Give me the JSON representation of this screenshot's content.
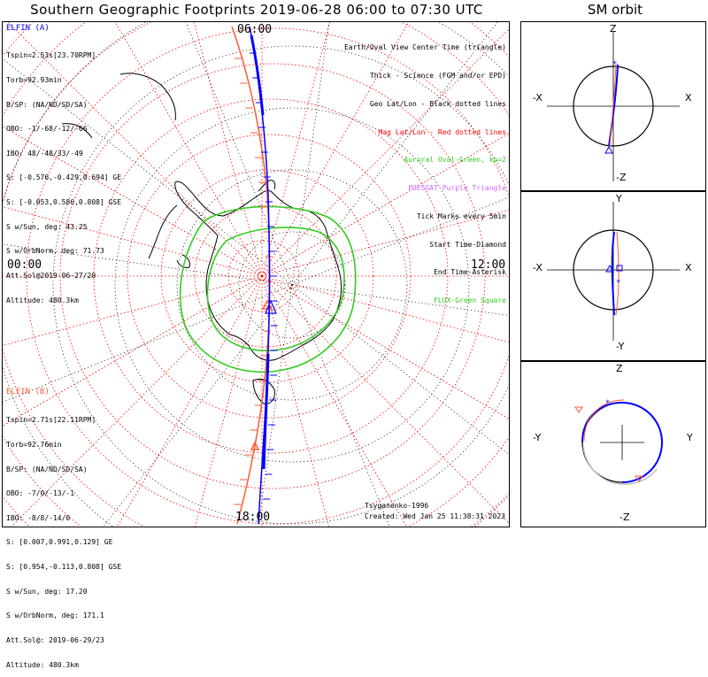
{
  "title": "Southern Geographic Footprints 2019-06-28 06:00 to 07:30 UTC",
  "orbit_title": "SM orbit",
  "colors": {
    "elfin_a": "#0000ff",
    "elfin_b": "#ff5a36",
    "aurora": "#33cc22",
    "geo_grid": "#000000",
    "mag_grid": "#ff0000",
    "poessat": "#cc66ff",
    "fluxtube": "#33cc22"
  },
  "main_labels": {
    "top": "06:00",
    "left": "00:00",
    "right": "12:00",
    "bottom": "18:00"
  },
  "elfin_a": {
    "name": "ELFIN (A)",
    "lines": [
      "Tspin=2.53s[23.70RPM]",
      "Torb=92.93min",
      "B/SP: (NA/ND/SD/SA)",
      "OBO: -1/-68/-12/-66",
      "IBO: 48/-48/33/-49",
      "S: [-0.576,-0.429,0.694] GE",
      "S: [-0.053,0.586,0.808] GSE",
      "S w/Sun, deg: 43.25",
      "S w/OrbNorm, deg: 71.73",
      "Att.Sol@2019-06-27/20",
      "Altitude: 480.3km"
    ]
  },
  "elfin_b": {
    "name": "ELFIN (B)",
    "lines": [
      "Tspin=2.71s[22.11RPM]",
      "Torb=92.76min",
      "B/SP: (NA/ND/SD/SA)",
      "OBO: -7/0/-13/-1",
      "IBO: -8/8/-14/0",
      "S: [0.007,0.991,0.129] GE",
      "S: [0.954,-0.113,0.808] GSE",
      "S w/Sun, deg: 17.20",
      "S w/OrbNorm, deg: 171.1",
      "Att.Sol@: 2019-06-29/23",
      "Altitude: 480.3km"
    ]
  },
  "legend": [
    {
      "text": "Earth/Oval View Center Time (triangle)",
      "color": "#000000"
    },
    {
      "text": "Thick - Science (FGM and/or EPD)",
      "color": "#000000"
    },
    {
      "text": "Geo Lat/Lon - Black dotted lines",
      "color": "#000000"
    },
    {
      "text": "Mag Lat/Lon - Red dotted lines",
      "color": "#ff0000"
    },
    {
      "text": "Auroral Oval-Green, kp=2",
      "color": "#33cc22"
    },
    {
      "text": "POESSAT-Purple Triangle",
      "color": "#cc66ff"
    },
    {
      "text": "Tick Marks every 5min",
      "color": "#000000"
    },
    {
      "text": "Start Time-Diamond",
      "color": "#000000"
    },
    {
      "text": "End Time-Asterisk",
      "color": "#000000"
    },
    {
      "text": "FLUX-Green Square",
      "color": "#33cc22"
    }
  ],
  "credit": "Tsyganenko-1996",
  "created": "Created: Wed Jan 25 11:38:31 2023",
  "orbit_panels": [
    {
      "name": "xz",
      "top": "Z",
      "bottom": "-Z",
      "left": "-X",
      "right": "X"
    },
    {
      "name": "xy",
      "top": "Y",
      "bottom": "-Y",
      "left": "-X",
      "right": "X"
    },
    {
      "name": "yz",
      "top": "Z",
      "bottom": "-Z",
      "left": "-Y",
      "right": "Y"
    }
  ]
}
